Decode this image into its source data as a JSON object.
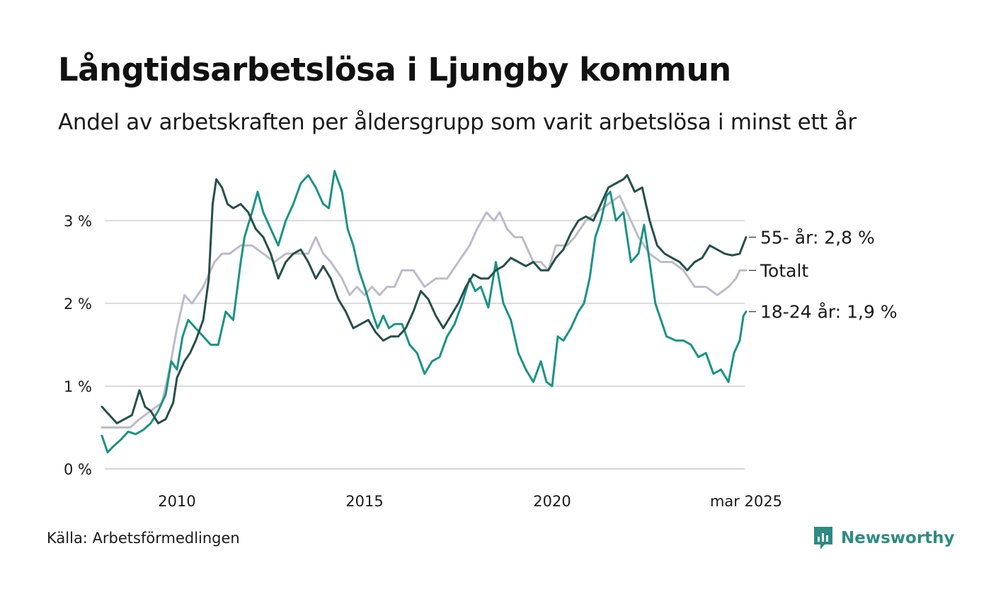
{
  "title": "Långtidsarbetslösa i Ljungby kommun",
  "subtitle": "Andel av arbetskraften per åldersgrupp som varit arbetslösa i minst ett år",
  "source": "Källa: Arbetsförmedlingen",
  "brand": {
    "name": "Newsworthy",
    "icon": "newsworthy-logo-icon",
    "color": "#2e8b82"
  },
  "chart_data": {
    "type": "line",
    "x_range": [
      2008.0,
      2025.25
    ],
    "ylim": [
      0,
      3.7
    ],
    "x_ticks": [
      {
        "value": 2010,
        "label": "2010"
      },
      {
        "value": 2015,
        "label": "2015"
      },
      {
        "value": 2020,
        "label": "2020"
      },
      {
        "value": 2025.17,
        "label": "mar 2025"
      }
    ],
    "y_ticks": [
      {
        "value": 0,
        "label": "0 %"
      },
      {
        "value": 1,
        "label": "1 %"
      },
      {
        "value": 2,
        "label": "2 %"
      },
      {
        "value": 3,
        "label": "3 %"
      }
    ],
    "grid": true,
    "series": [
      {
        "name": "Totalt",
        "label": "Totalt",
        "color": "#bdbbc8",
        "points": [
          [
            2008.0,
            0.5
          ],
          [
            2008.5,
            0.5
          ],
          [
            2008.75,
            0.5
          ],
          [
            2009.0,
            0.6
          ],
          [
            2009.3,
            0.7
          ],
          [
            2009.6,
            0.8
          ],
          [
            2009.8,
            1.2
          ],
          [
            2010.0,
            1.7
          ],
          [
            2010.2,
            2.1
          ],
          [
            2010.4,
            2.0
          ],
          [
            2010.7,
            2.2
          ],
          [
            2011.0,
            2.5
          ],
          [
            2011.2,
            2.6
          ],
          [
            2011.4,
            2.6
          ],
          [
            2011.7,
            2.7
          ],
          [
            2012.0,
            2.7
          ],
          [
            2012.3,
            2.6
          ],
          [
            2012.6,
            2.5
          ],
          [
            2012.9,
            2.6
          ],
          [
            2013.2,
            2.6
          ],
          [
            2013.5,
            2.6
          ],
          [
            2013.7,
            2.8
          ],
          [
            2013.9,
            2.6
          ],
          [
            2014.1,
            2.5
          ],
          [
            2014.4,
            2.3
          ],
          [
            2014.6,
            2.1
          ],
          [
            2014.8,
            2.2
          ],
          [
            2015.0,
            2.1
          ],
          [
            2015.2,
            2.2
          ],
          [
            2015.4,
            2.1
          ],
          [
            2015.6,
            2.2
          ],
          [
            2015.8,
            2.2
          ],
          [
            2016.0,
            2.4
          ],
          [
            2016.3,
            2.4
          ],
          [
            2016.6,
            2.2
          ],
          [
            2016.9,
            2.3
          ],
          [
            2017.2,
            2.3
          ],
          [
            2017.5,
            2.5
          ],
          [
            2017.8,
            2.7
          ],
          [
            2018.0,
            2.9
          ],
          [
            2018.25,
            3.1
          ],
          [
            2018.45,
            3.0
          ],
          [
            2018.6,
            3.1
          ],
          [
            2018.8,
            2.9
          ],
          [
            2019.0,
            2.8
          ],
          [
            2019.2,
            2.8
          ],
          [
            2019.5,
            2.5
          ],
          [
            2019.7,
            2.5
          ],
          [
            2019.9,
            2.4
          ],
          [
            2020.1,
            2.7
          ],
          [
            2020.4,
            2.7
          ],
          [
            2020.6,
            2.8
          ],
          [
            2020.9,
            3.0
          ],
          [
            2021.2,
            3.1
          ],
          [
            2021.5,
            3.2
          ],
          [
            2021.8,
            3.3
          ],
          [
            2022.0,
            3.1
          ],
          [
            2022.3,
            2.8
          ],
          [
            2022.6,
            2.6
          ],
          [
            2022.9,
            2.5
          ],
          [
            2023.2,
            2.5
          ],
          [
            2023.5,
            2.4
          ],
          [
            2023.8,
            2.2
          ],
          [
            2024.1,
            2.2
          ],
          [
            2024.4,
            2.1
          ],
          [
            2024.7,
            2.2
          ],
          [
            2024.9,
            2.3
          ],
          [
            2025.0,
            2.4
          ],
          [
            2025.17,
            2.4
          ]
        ]
      },
      {
        "name": "18-24 år",
        "label": "18-24 år: 1,9 %",
        "color": "#1a9385",
        "points": [
          [
            2008.0,
            0.4
          ],
          [
            2008.15,
            0.2
          ],
          [
            2008.3,
            0.27
          ],
          [
            2008.5,
            0.35
          ],
          [
            2008.7,
            0.45
          ],
          [
            2008.9,
            0.42
          ],
          [
            2009.1,
            0.47
          ],
          [
            2009.3,
            0.55
          ],
          [
            2009.5,
            0.7
          ],
          [
            2009.7,
            0.9
          ],
          [
            2009.85,
            1.3
          ],
          [
            2010.0,
            1.2
          ],
          [
            2010.15,
            1.6
          ],
          [
            2010.3,
            1.8
          ],
          [
            2010.5,
            1.7
          ],
          [
            2010.7,
            1.6
          ],
          [
            2010.9,
            1.5
          ],
          [
            2011.1,
            1.5
          ],
          [
            2011.3,
            1.9
          ],
          [
            2011.5,
            1.8
          ],
          [
            2011.7,
            2.5
          ],
          [
            2011.8,
            2.8
          ],
          [
            2012.0,
            3.1
          ],
          [
            2012.15,
            3.35
          ],
          [
            2012.3,
            3.1
          ],
          [
            2012.5,
            2.9
          ],
          [
            2012.7,
            2.7
          ],
          [
            2012.9,
            3.0
          ],
          [
            2013.1,
            3.2
          ],
          [
            2013.3,
            3.45
          ],
          [
            2013.5,
            3.55
          ],
          [
            2013.7,
            3.4
          ],
          [
            2013.9,
            3.2
          ],
          [
            2014.05,
            3.15
          ],
          [
            2014.2,
            3.6
          ],
          [
            2014.4,
            3.35
          ],
          [
            2014.55,
            2.9
          ],
          [
            2014.7,
            2.7
          ],
          [
            2014.85,
            2.4
          ],
          [
            2015.0,
            2.2
          ],
          [
            2015.2,
            1.9
          ],
          [
            2015.35,
            1.7
          ],
          [
            2015.5,
            1.85
          ],
          [
            2015.65,
            1.7
          ],
          [
            2015.8,
            1.75
          ],
          [
            2016.0,
            1.75
          ],
          [
            2016.2,
            1.5
          ],
          [
            2016.4,
            1.4
          ],
          [
            2016.6,
            1.15
          ],
          [
            2016.8,
            1.3
          ],
          [
            2017.0,
            1.35
          ],
          [
            2017.2,
            1.6
          ],
          [
            2017.4,
            1.75
          ],
          [
            2017.6,
            2.0
          ],
          [
            2017.8,
            2.3
          ],
          [
            2017.95,
            2.15
          ],
          [
            2018.1,
            2.2
          ],
          [
            2018.3,
            1.95
          ],
          [
            2018.5,
            2.5
          ],
          [
            2018.7,
            2.0
          ],
          [
            2018.9,
            1.8
          ],
          [
            2019.1,
            1.4
          ],
          [
            2019.3,
            1.2
          ],
          [
            2019.5,
            1.05
          ],
          [
            2019.7,
            1.3
          ],
          [
            2019.85,
            1.05
          ],
          [
            2020.0,
            1.0
          ],
          [
            2020.15,
            1.6
          ],
          [
            2020.3,
            1.55
          ],
          [
            2020.5,
            1.7
          ],
          [
            2020.7,
            1.9
          ],
          [
            2020.85,
            2.0
          ],
          [
            2021.0,
            2.3
          ],
          [
            2021.15,
            2.8
          ],
          [
            2021.3,
            3.0
          ],
          [
            2021.45,
            3.3
          ],
          [
            2021.55,
            3.35
          ],
          [
            2021.7,
            3.0
          ],
          [
            2021.9,
            3.1
          ],
          [
            2022.1,
            2.5
          ],
          [
            2022.3,
            2.6
          ],
          [
            2022.45,
            2.95
          ],
          [
            2022.6,
            2.5
          ],
          [
            2022.75,
            2.0
          ],
          [
            2022.9,
            1.8
          ],
          [
            2023.05,
            1.6
          ],
          [
            2023.3,
            1.55
          ],
          [
            2023.5,
            1.55
          ],
          [
            2023.7,
            1.5
          ],
          [
            2023.9,
            1.35
          ],
          [
            2024.1,
            1.4
          ],
          [
            2024.3,
            1.15
          ],
          [
            2024.5,
            1.2
          ],
          [
            2024.7,
            1.05
          ],
          [
            2024.85,
            1.4
          ],
          [
            2025.0,
            1.55
          ],
          [
            2025.1,
            1.85
          ],
          [
            2025.17,
            1.9
          ]
        ]
      },
      {
        "name": "55- år",
        "label": "55- år: 2,8 %",
        "color": "#264f4a",
        "points": [
          [
            2008.0,
            0.75
          ],
          [
            2008.2,
            0.65
          ],
          [
            2008.4,
            0.55
          ],
          [
            2008.6,
            0.6
          ],
          [
            2008.8,
            0.65
          ],
          [
            2009.0,
            0.95
          ],
          [
            2009.15,
            0.75
          ],
          [
            2009.3,
            0.7
          ],
          [
            2009.5,
            0.55
          ],
          [
            2009.7,
            0.6
          ],
          [
            2009.9,
            0.8
          ],
          [
            2010.0,
            1.1
          ],
          [
            2010.2,
            1.3
          ],
          [
            2010.35,
            1.4
          ],
          [
            2010.5,
            1.55
          ],
          [
            2010.7,
            1.8
          ],
          [
            2010.85,
            2.3
          ],
          [
            2010.95,
            3.2
          ],
          [
            2011.05,
            3.5
          ],
          [
            2011.2,
            3.4
          ],
          [
            2011.35,
            3.2
          ],
          [
            2011.5,
            3.15
          ],
          [
            2011.7,
            3.2
          ],
          [
            2011.9,
            3.1
          ],
          [
            2012.1,
            2.9
          ],
          [
            2012.3,
            2.8
          ],
          [
            2012.5,
            2.6
          ],
          [
            2012.7,
            2.3
          ],
          [
            2012.9,
            2.5
          ],
          [
            2013.1,
            2.6
          ],
          [
            2013.3,
            2.65
          ],
          [
            2013.5,
            2.5
          ],
          [
            2013.7,
            2.3
          ],
          [
            2013.9,
            2.45
          ],
          [
            2014.1,
            2.3
          ],
          [
            2014.3,
            2.05
          ],
          [
            2014.5,
            1.9
          ],
          [
            2014.7,
            1.7
          ],
          [
            2014.9,
            1.75
          ],
          [
            2015.1,
            1.8
          ],
          [
            2015.3,
            1.65
          ],
          [
            2015.5,
            1.55
          ],
          [
            2015.7,
            1.6
          ],
          [
            2015.9,
            1.6
          ],
          [
            2016.1,
            1.7
          ],
          [
            2016.3,
            1.9
          ],
          [
            2016.5,
            2.15
          ],
          [
            2016.7,
            2.05
          ],
          [
            2016.9,
            1.85
          ],
          [
            2017.1,
            1.7
          ],
          [
            2017.3,
            1.85
          ],
          [
            2017.5,
            2.0
          ],
          [
            2017.7,
            2.2
          ],
          [
            2017.9,
            2.35
          ],
          [
            2018.1,
            2.3
          ],
          [
            2018.3,
            2.3
          ],
          [
            2018.5,
            2.4
          ],
          [
            2018.7,
            2.45
          ],
          [
            2018.9,
            2.55
          ],
          [
            2019.1,
            2.5
          ],
          [
            2019.3,
            2.45
          ],
          [
            2019.5,
            2.5
          ],
          [
            2019.7,
            2.4
          ],
          [
            2019.9,
            2.4
          ],
          [
            2020.1,
            2.55
          ],
          [
            2020.3,
            2.65
          ],
          [
            2020.5,
            2.85
          ],
          [
            2020.7,
            3.0
          ],
          [
            2020.9,
            3.05
          ],
          [
            2021.1,
            3.0
          ],
          [
            2021.3,
            3.2
          ],
          [
            2021.5,
            3.4
          ],
          [
            2021.7,
            3.45
          ],
          [
            2021.9,
            3.5
          ],
          [
            2022.0,
            3.55
          ],
          [
            2022.2,
            3.35
          ],
          [
            2022.4,
            3.4
          ],
          [
            2022.6,
            3.0
          ],
          [
            2022.8,
            2.7
          ],
          [
            2023.0,
            2.6
          ],
          [
            2023.2,
            2.55
          ],
          [
            2023.4,
            2.5
          ],
          [
            2023.6,
            2.4
          ],
          [
            2023.8,
            2.5
          ],
          [
            2024.0,
            2.55
          ],
          [
            2024.2,
            2.7
          ],
          [
            2024.4,
            2.65
          ],
          [
            2024.6,
            2.6
          ],
          [
            2024.8,
            2.58
          ],
          [
            2025.0,
            2.6
          ],
          [
            2025.1,
            2.72
          ],
          [
            2025.17,
            2.8
          ]
        ]
      }
    ]
  }
}
